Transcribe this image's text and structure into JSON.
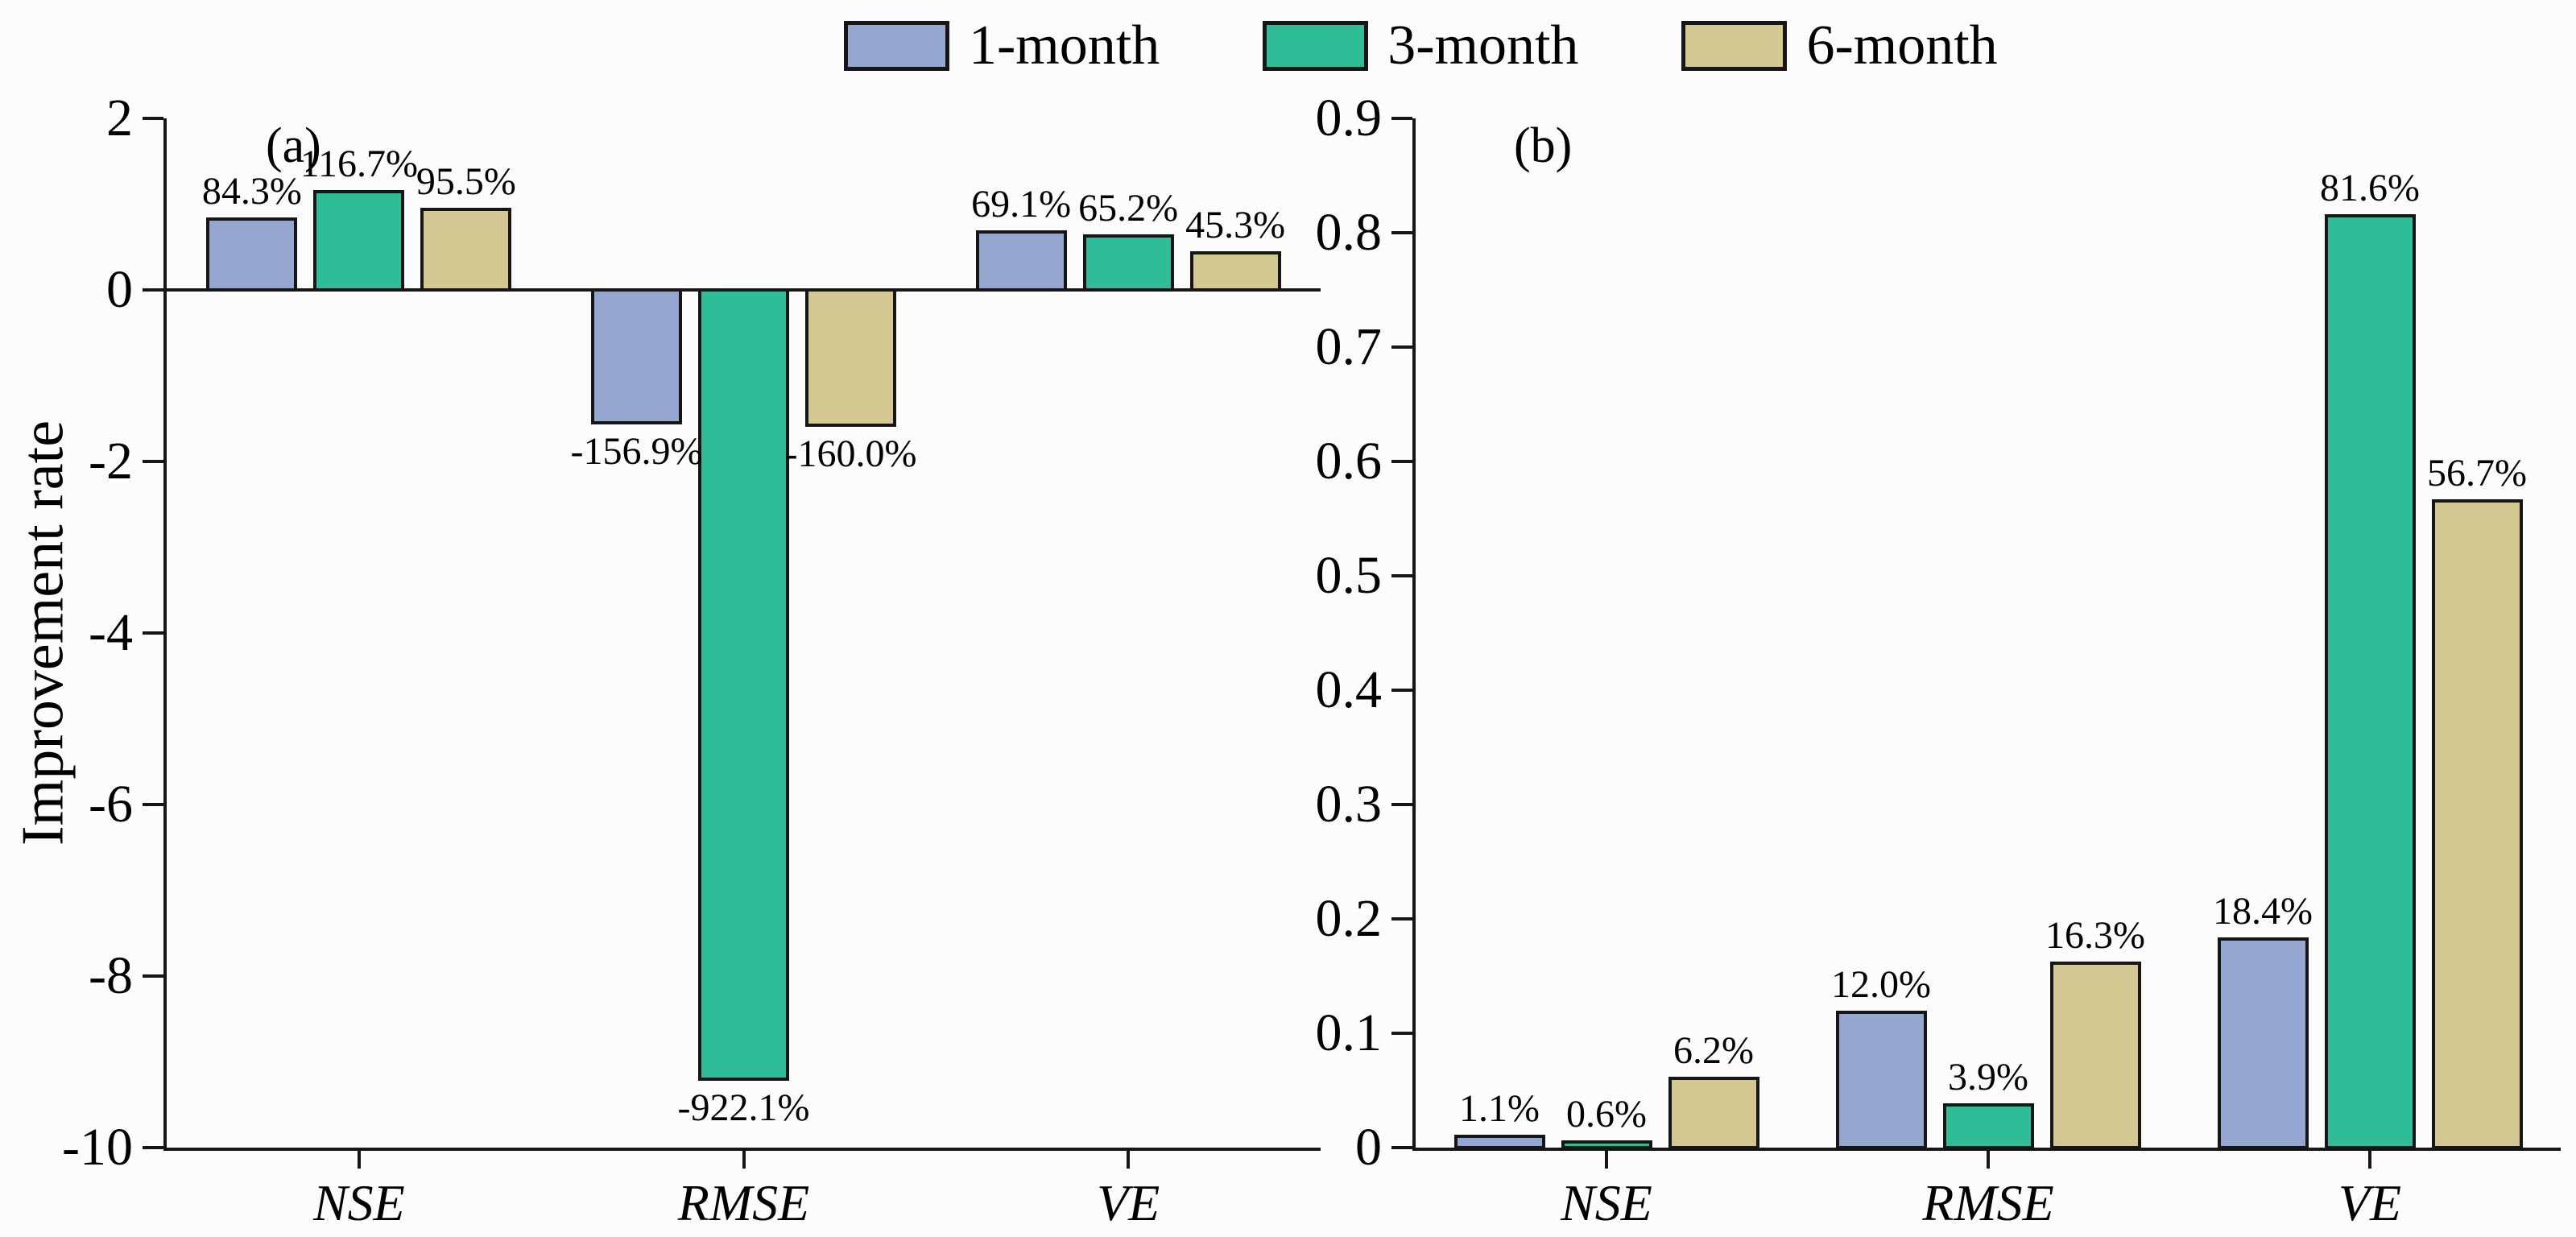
{
  "figure": {
    "background": "#fcfcfc",
    "axis_color": "#161616",
    "text_color": "#000000",
    "y_axis_title": "Improvement rate"
  },
  "legend": {
    "position": "top-center",
    "items": [
      {
        "label": "1-month",
        "color": "#95A7D0"
      },
      {
        "label": "3-month",
        "color": "#2EBD96"
      },
      {
        "label": "6-month",
        "color": "#D4C892"
      }
    ]
  },
  "chart_data": [
    {
      "type": "bar",
      "panel": "(a)",
      "title": "",
      "xlabel": "",
      "ylabel": "Improvement rate",
      "categories": [
        "NSE",
        "RMSE",
        "VE"
      ],
      "series": [
        {
          "name": "1-month",
          "values": [
            0.843,
            -1.569,
            0.691
          ],
          "labels": [
            "84.3%",
            "-156.9%",
            "69.1%"
          ]
        },
        {
          "name": "3-month",
          "values": [
            1.167,
            -9.221,
            0.652
          ],
          "labels": [
            "116.7%",
            "-922.1%",
            "65.2%"
          ]
        },
        {
          "name": "6-month",
          "values": [
            0.955,
            -1.6,
            0.453
          ],
          "labels": [
            "95.5%",
            "-160.0%",
            "45.3%"
          ]
        }
      ],
      "ylim": [
        -10,
        2
      ],
      "yticks": [
        2,
        0,
        -2,
        -4,
        -6,
        -8,
        -10
      ],
      "ytick_labels": [
        "2",
        "0",
        "-2",
        "-4",
        "-6",
        "-8",
        "-10"
      ],
      "grid": false,
      "legend_position": "top-center",
      "bar_label_format": "percent"
    },
    {
      "type": "bar",
      "panel": "(b)",
      "title": "",
      "xlabel": "",
      "ylabel": "",
      "categories": [
        "NSE",
        "RMSE",
        "VE"
      ],
      "series": [
        {
          "name": "1-month",
          "values": [
            0.011,
            0.12,
            0.184
          ],
          "labels": [
            "1.1%",
            "12.0%",
            "18.4%"
          ]
        },
        {
          "name": "3-month",
          "values": [
            0.006,
            0.039,
            0.816
          ],
          "labels": [
            "0.6%",
            "3.9%",
            "81.6%"
          ]
        },
        {
          "name": "6-month",
          "values": [
            0.062,
            0.163,
            0.567
          ],
          "labels": [
            "6.2%",
            "16.3%",
            "56.7%"
          ]
        }
      ],
      "ylim": [
        0,
        0.9
      ],
      "yticks": [
        0.9,
        0.8,
        0.7,
        0.6,
        0.5,
        0.4,
        0.3,
        0.2,
        0.1,
        0
      ],
      "ytick_labels": [
        "0.9",
        "0.8",
        "0.7",
        "0.6",
        "0.5",
        "0.4",
        "0.3",
        "0.2",
        "0.1",
        "0"
      ],
      "grid": false,
      "bar_label_format": "percent"
    }
  ]
}
